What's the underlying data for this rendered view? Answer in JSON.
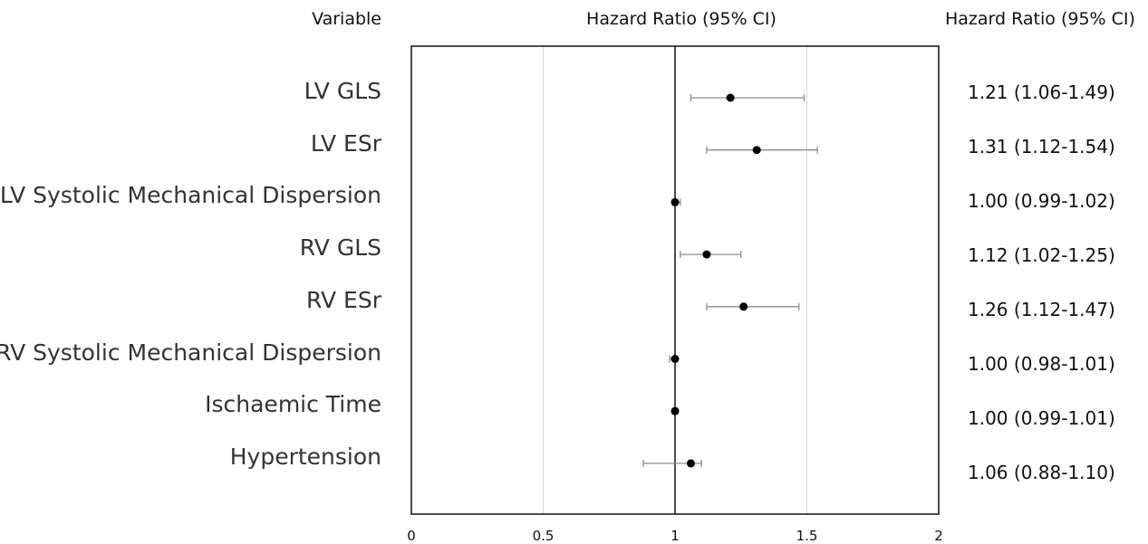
{
  "headers": {
    "variable": "Variable",
    "center": "Hazard Ratio (95% CI)",
    "right": "Hazard Ratio (95% CI)"
  },
  "chart_data": {
    "type": "scatter",
    "subtype": "forest-plot",
    "x_ticks": [
      "0",
      "0.5",
      "1",
      "1.5",
      "2"
    ],
    "xlim": [
      0,
      2
    ],
    "reference_line": 1,
    "grid": "vertical",
    "rows": [
      {
        "label": "LV GLS",
        "hr": 1.21,
        "lo": 1.06,
        "hi": 1.49,
        "text": "1.21 (1.06-1.49)"
      },
      {
        "label": "LV ESr",
        "hr": 1.31,
        "lo": 1.12,
        "hi": 1.54,
        "text": "1.31 (1.12-1.54)"
      },
      {
        "label": "LV Systolic Mechanical Dispersion",
        "hr": 1.0,
        "lo": 0.99,
        "hi": 1.02,
        "text": "1.00 (0.99-1.02)"
      },
      {
        "label": "RV GLS",
        "hr": 1.12,
        "lo": 1.02,
        "hi": 1.25,
        "text": "1.12 (1.02-1.25)"
      },
      {
        "label": "RV ESr",
        "hr": 1.26,
        "lo": 1.12,
        "hi": 1.47,
        "text": "1.26 (1.12-1.47)"
      },
      {
        "label": "RV Systolic Mechanical Dispersion",
        "hr": 1.0,
        "lo": 0.98,
        "hi": 1.01,
        "text": "1.00 (0.98-1.01)"
      },
      {
        "label": "Ischaemic Time",
        "hr": 1.0,
        "lo": 0.99,
        "hi": 1.01,
        "text": "1.00 (0.99-1.01)"
      },
      {
        "label": "Hypertension",
        "hr": 1.06,
        "lo": 0.88,
        "hi": 1.1,
        "text": "1.06 (0.88-1.10)"
      }
    ]
  }
}
